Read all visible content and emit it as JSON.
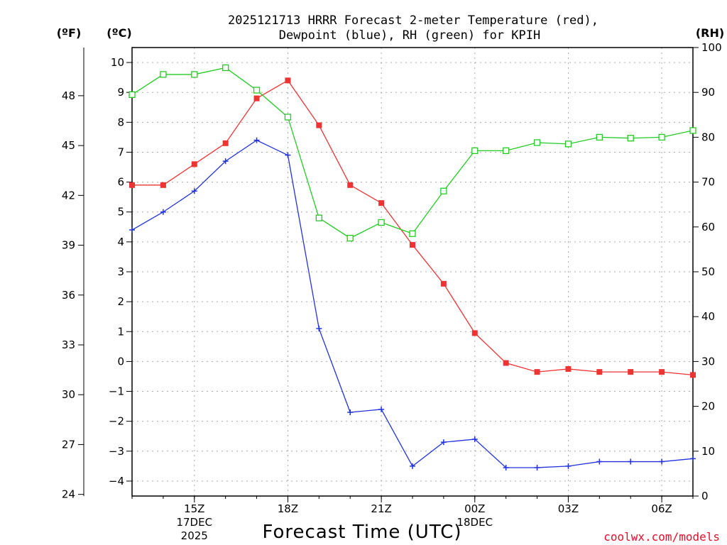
{
  "chart_data": {
    "type": "line",
    "title_line1": "2025121713 HRRR Forecast 2-meter Temperature (red),",
    "title_line2": "Dewpoint (blue), RH (green) for KPIH",
    "xlabel": "Forecast Time (UTC)",
    "credit": "coolwx.com/models",
    "unit_f": "(ºF)",
    "unit_c": "(ºC)",
    "unit_rh": "(RH)",
    "x_hours": [
      13,
      14,
      15,
      16,
      17,
      18,
      19,
      20,
      21,
      22,
      23,
      24,
      25,
      26,
      27,
      28,
      29,
      30,
      31
    ],
    "xlim": [
      13,
      31
    ],
    "x_ticks": [
      {
        "x": 15,
        "label": "15Z",
        "sub1": "17DEC",
        "sub2": "2025"
      },
      {
        "x": 18,
        "label": "18Z",
        "sub1": "",
        "sub2": ""
      },
      {
        "x": 21,
        "label": "21Z",
        "sub1": "",
        "sub2": ""
      },
      {
        "x": 24,
        "label": "00Z",
        "sub1": "18DEC",
        "sub2": ""
      },
      {
        "x": 27,
        "label": "03Z",
        "sub1": "",
        "sub2": ""
      },
      {
        "x": 30,
        "label": "06Z",
        "sub1": "",
        "sub2": ""
      }
    ],
    "ylim_c": [
      -4.5,
      10.5
    ],
    "c_ticks": [
      "10",
      "9",
      "8",
      "7",
      "6",
      "5",
      "4",
      "3",
      "2",
      "1",
      "0",
      "−1",
      "−2",
      "−3",
      "−4"
    ],
    "c_tick_values": [
      10,
      9,
      8,
      7,
      6,
      5,
      4,
      3,
      2,
      1,
      0,
      -1,
      -2,
      -3,
      -4
    ],
    "f_ticks": [
      "48",
      "45",
      "42",
      "39",
      "36",
      "33",
      "30",
      "27",
      "24"
    ],
    "f_tick_values": [
      48,
      45,
      42,
      39,
      36,
      33,
      30,
      27,
      24
    ],
    "ylim_rh": [
      0,
      100
    ],
    "rh_ticks": [
      "100",
      "90",
      "80",
      "70",
      "60",
      "50",
      "40",
      "30",
      "20",
      "10",
      "0"
    ],
    "rh_tick_values": [
      100,
      90,
      80,
      70,
      60,
      50,
      40,
      30,
      20,
      10,
      0
    ],
    "series": [
      {
        "name": "Temperature",
        "color": "#ee3333",
        "marker": "filled-square",
        "values": [
          5.9,
          5.9,
          6.6,
          7.3,
          8.8,
          9.4,
          7.9,
          5.9,
          5.3,
          3.9,
          2.6,
          0.95,
          -0.05,
          -0.35,
          -0.25,
          -0.35,
          -0.35,
          -0.35,
          -0.45
        ]
      },
      {
        "name": "Dewpoint",
        "color": "#2233dd",
        "marker": "plus",
        "values": [
          4.4,
          5.0,
          5.7,
          6.7,
          7.4,
          6.9,
          1.1,
          -1.7,
          -1.6,
          -3.5,
          -2.7,
          -2.6,
          -3.55,
          -3.55,
          -3.5,
          -3.35,
          -3.35,
          -3.35,
          -3.25
        ]
      },
      {
        "name": "RH",
        "color": "#22cc22",
        "marker": "open-square",
        "values": [
          89.5,
          94,
          94,
          95.5,
          90.5,
          84.5,
          62,
          57.5,
          61,
          58.5,
          68,
          77,
          77,
          78.8,
          78.5,
          80,
          79.8,
          80,
          81.5
        ]
      }
    ]
  }
}
